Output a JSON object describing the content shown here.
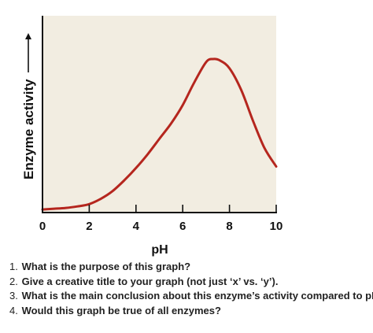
{
  "chart_data": {
    "type": "line",
    "xlabel": "pH",
    "ylabel": "Enzyme activity",
    "xlim": [
      0,
      10
    ],
    "xticks": [
      "0",
      "2",
      "4",
      "6",
      "8",
      "10"
    ],
    "ylim": [
      0,
      1
    ],
    "grid": false,
    "plot_background": "#f2ede1",
    "series": [
      {
        "color": "#b5261e",
        "x": [
          0,
          0.5,
          1,
          1.5,
          2,
          2.5,
          3,
          3.5,
          4,
          4.5,
          5,
          5.5,
          6,
          6.5,
          7,
          7.3,
          7.6,
          8,
          8.5,
          9,
          9.5,
          10
        ],
        "y": [
          0.02,
          0.025,
          0.03,
          0.04,
          0.055,
          0.09,
          0.14,
          0.21,
          0.29,
          0.38,
          0.48,
          0.58,
          0.7,
          0.85,
          0.98,
          1.0,
          0.99,
          0.94,
          0.8,
          0.6,
          0.42,
          0.3
        ]
      }
    ]
  },
  "questions": [
    {
      "num": "1.",
      "text": "What is the purpose of this graph?"
    },
    {
      "num": "2.",
      "text": "Give a creative title to your graph (not just ‘x’ vs. ‘y’)."
    },
    {
      "num": "3.",
      "text": "What is the main conclusion about this enzyme’s activity compared to pH?"
    },
    {
      "num": "4.",
      "text": "Would this graph be true of all enzymes?"
    }
  ]
}
